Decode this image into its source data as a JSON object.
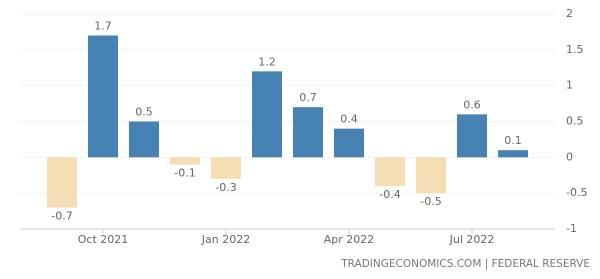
{
  "chart_data": {
    "type": "bar",
    "categories": [
      null,
      "Oct 2021",
      null,
      null,
      "Jan 2022",
      null,
      null,
      "Apr 2022",
      null,
      null,
      "Jul 2022",
      null
    ],
    "values": [
      -0.7,
      1.7,
      0.5,
      -0.1,
      -0.3,
      1.2,
      0.7,
      0.4,
      -0.4,
      -0.5,
      0.6,
      0.1
    ],
    "positive_color": "#4682b4",
    "negative_color": "#f5deb3",
    "ylim": [
      -1,
      2
    ],
    "yticks": [
      -1,
      -0.5,
      0,
      0.5,
      1,
      1.5,
      2
    ],
    "grid": true,
    "source": "TRADINGECONOMICS.COM | FEDERAL RESERVE"
  }
}
